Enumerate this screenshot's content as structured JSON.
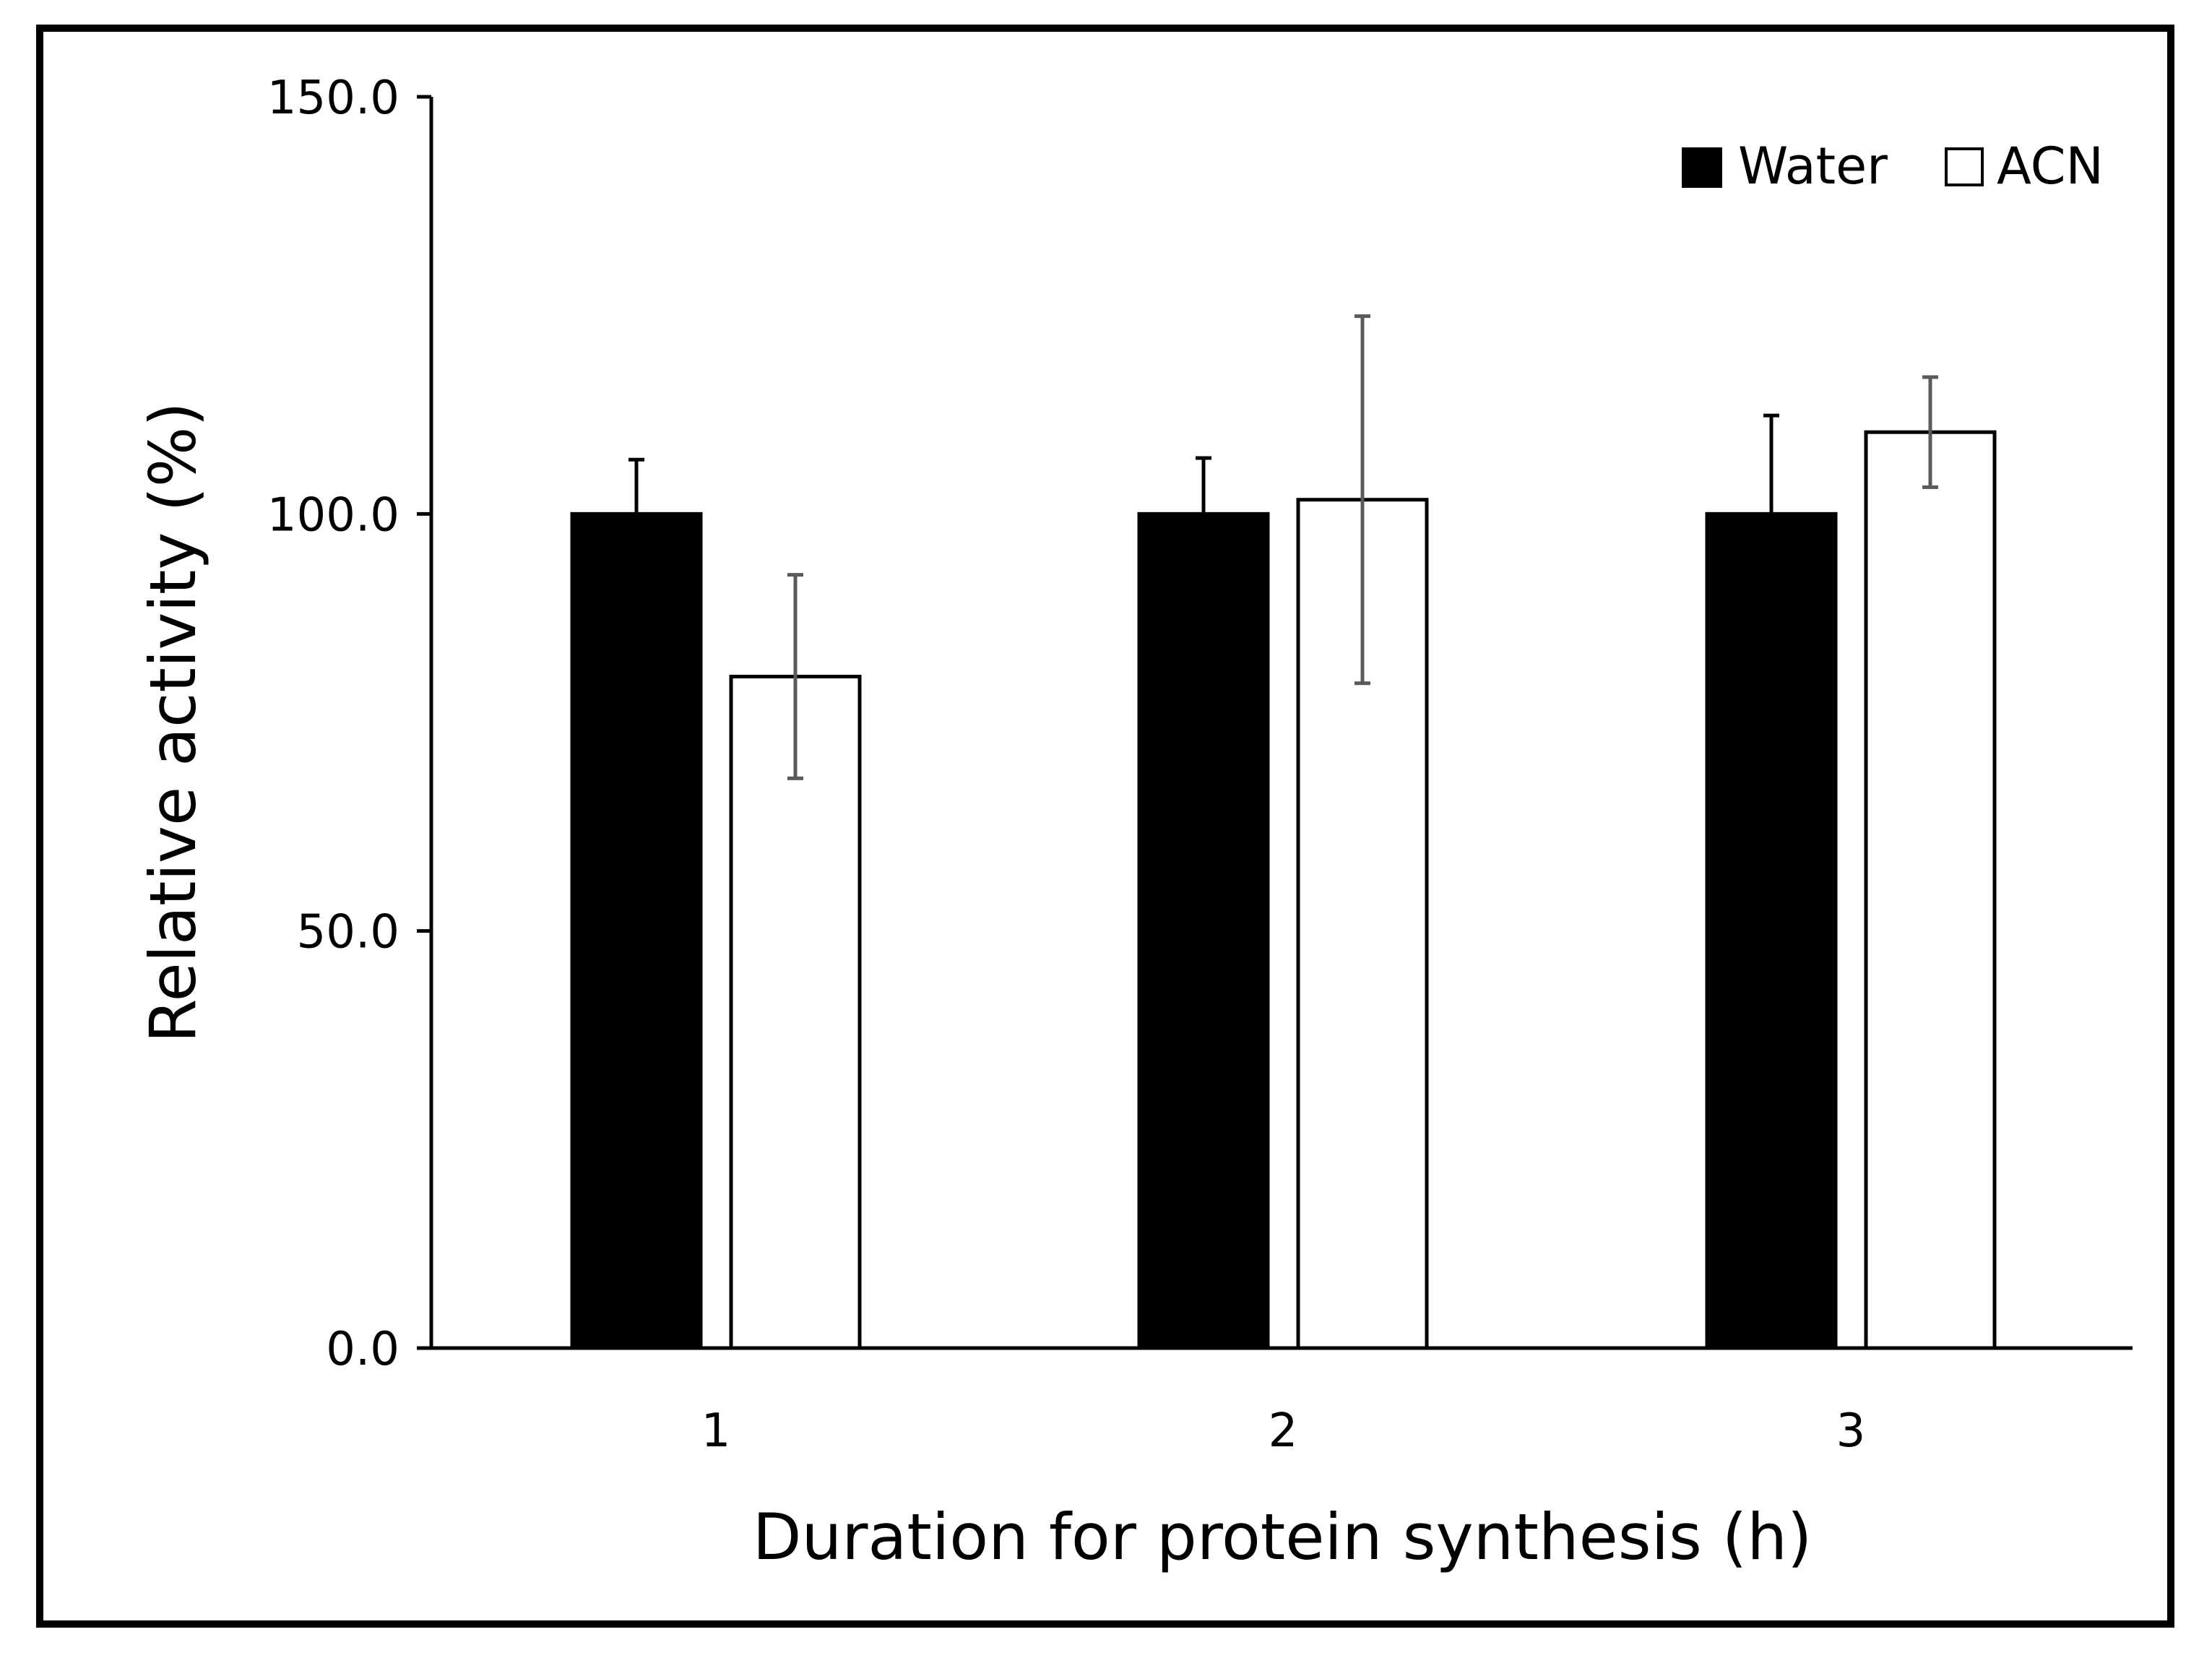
{
  "chart_data": {
    "type": "bar",
    "xlabel": "Duration for protein synthesis (h)",
    "ylabel": "Relative activity (%)",
    "categories": [
      "1",
      "2",
      "3"
    ],
    "ylim": [
      0,
      150
    ],
    "yticks": [
      "0.0",
      "50.0",
      "100.0",
      "150.0"
    ],
    "grid": false,
    "legend_position": "top-right",
    "series": [
      {
        "name": "Water",
        "fill": "#000000",
        "values": [
          100.0,
          100.0,
          100.0
        ],
        "error_plus": [
          6.5,
          6.7,
          11.8
        ],
        "error_minus": [
          0,
          0,
          0
        ],
        "error_color": "#000000"
      },
      {
        "name": "ACN",
        "fill": "#ffffff",
        "values": [
          80.5,
          101.7,
          109.8
        ],
        "error_plus": [
          12.2,
          22.0,
          6.6
        ],
        "error_minus": [
          12.2,
          22.0,
          6.6
        ],
        "error_color": "#5a5a5a"
      }
    ]
  }
}
